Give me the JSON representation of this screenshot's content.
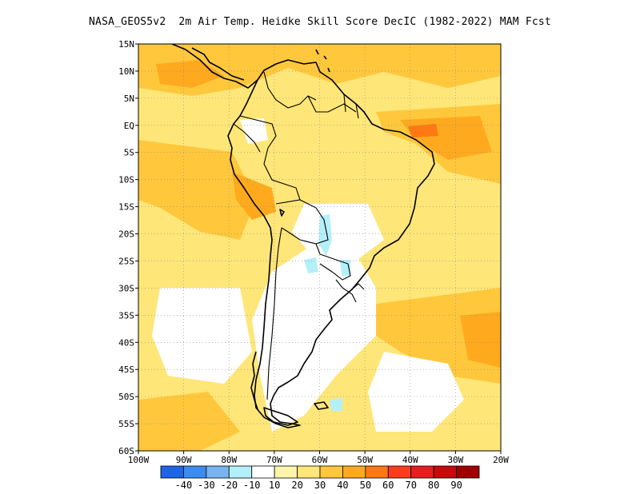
{
  "title": "NASA_GEOS5v2  2m Air Temp. Heidke Skill Score DecIC (1982-2022) MAM Fcst",
  "map": {
    "lat_ticks": [
      "15N",
      "10N",
      "5N",
      "EQ",
      "5S",
      "10S",
      "15S",
      "20S",
      "25S",
      "30S",
      "35S",
      "40S",
      "45S",
      "50S",
      "55S",
      "60S"
    ],
    "lon_ticks": [
      "100W",
      "90W",
      "80W",
      "70W",
      "60W",
      "50W",
      "40W",
      "30W",
      "20W"
    ],
    "lon_range": [
      -100,
      -20
    ],
    "lat_range": [
      -60,
      15
    ],
    "grid": "dotted"
  },
  "colorbar": {
    "colors": [
      "#1e64e6",
      "#3c8cf0",
      "#78b4f0",
      "#b4f0fa",
      "#ffffff",
      "#fff5aa",
      "#ffe678",
      "#ffc83c",
      "#ffaa1e",
      "#ff7814",
      "#ff3c1e",
      "#e61e1e",
      "#c80a0a",
      "#a00000"
    ],
    "labels": [
      "-40",
      "-30",
      "-20",
      "-10",
      "10",
      "20",
      "30",
      "40",
      "50",
      "60",
      "70",
      "80",
      "90"
    ]
  },
  "regions": {
    "ocean_base": "#ffe678",
    "continent_base": "#fff5aa"
  }
}
